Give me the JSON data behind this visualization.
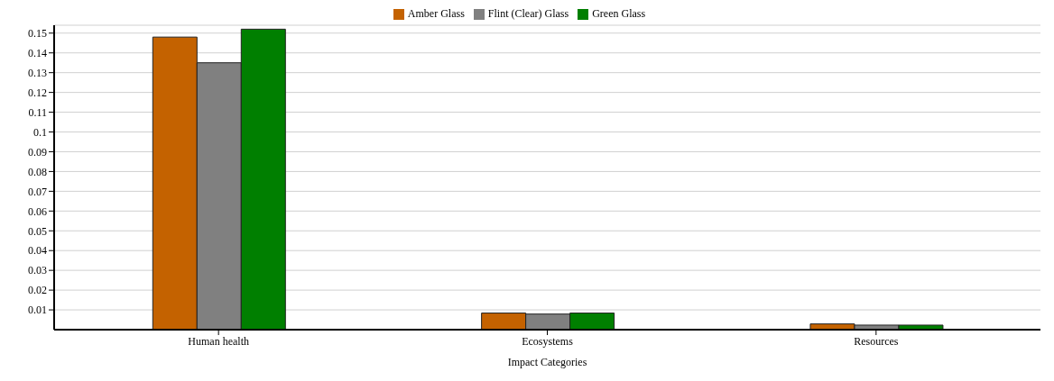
{
  "chart_data": {
    "type": "bar",
    "xlabel": "Impact Categories",
    "categories": [
      "Human health",
      "Ecosystems",
      "Resources"
    ],
    "series": [
      {
        "name": "Amber Glass",
        "color": "#c46200",
        "values": [
          0.148,
          0.0084,
          0.0029
        ]
      },
      {
        "name": "Flint (Clear) Glass",
        "color": "#808080",
        "values": [
          0.135,
          0.0079,
          0.0023
        ]
      },
      {
        "name": "Green Glass",
        "color": "#007f00",
        "values": [
          0.152,
          0.0084,
          0.0023
        ]
      }
    ],
    "ylim": [
      0,
      0.154
    ],
    "yticks": [
      0.01,
      0.02,
      0.03,
      0.04,
      0.05,
      0.06,
      0.07,
      0.08,
      0.09,
      0.1,
      0.11,
      0.12,
      0.13,
      0.14,
      0.15
    ],
    "grid": "y",
    "legend": "top"
  }
}
